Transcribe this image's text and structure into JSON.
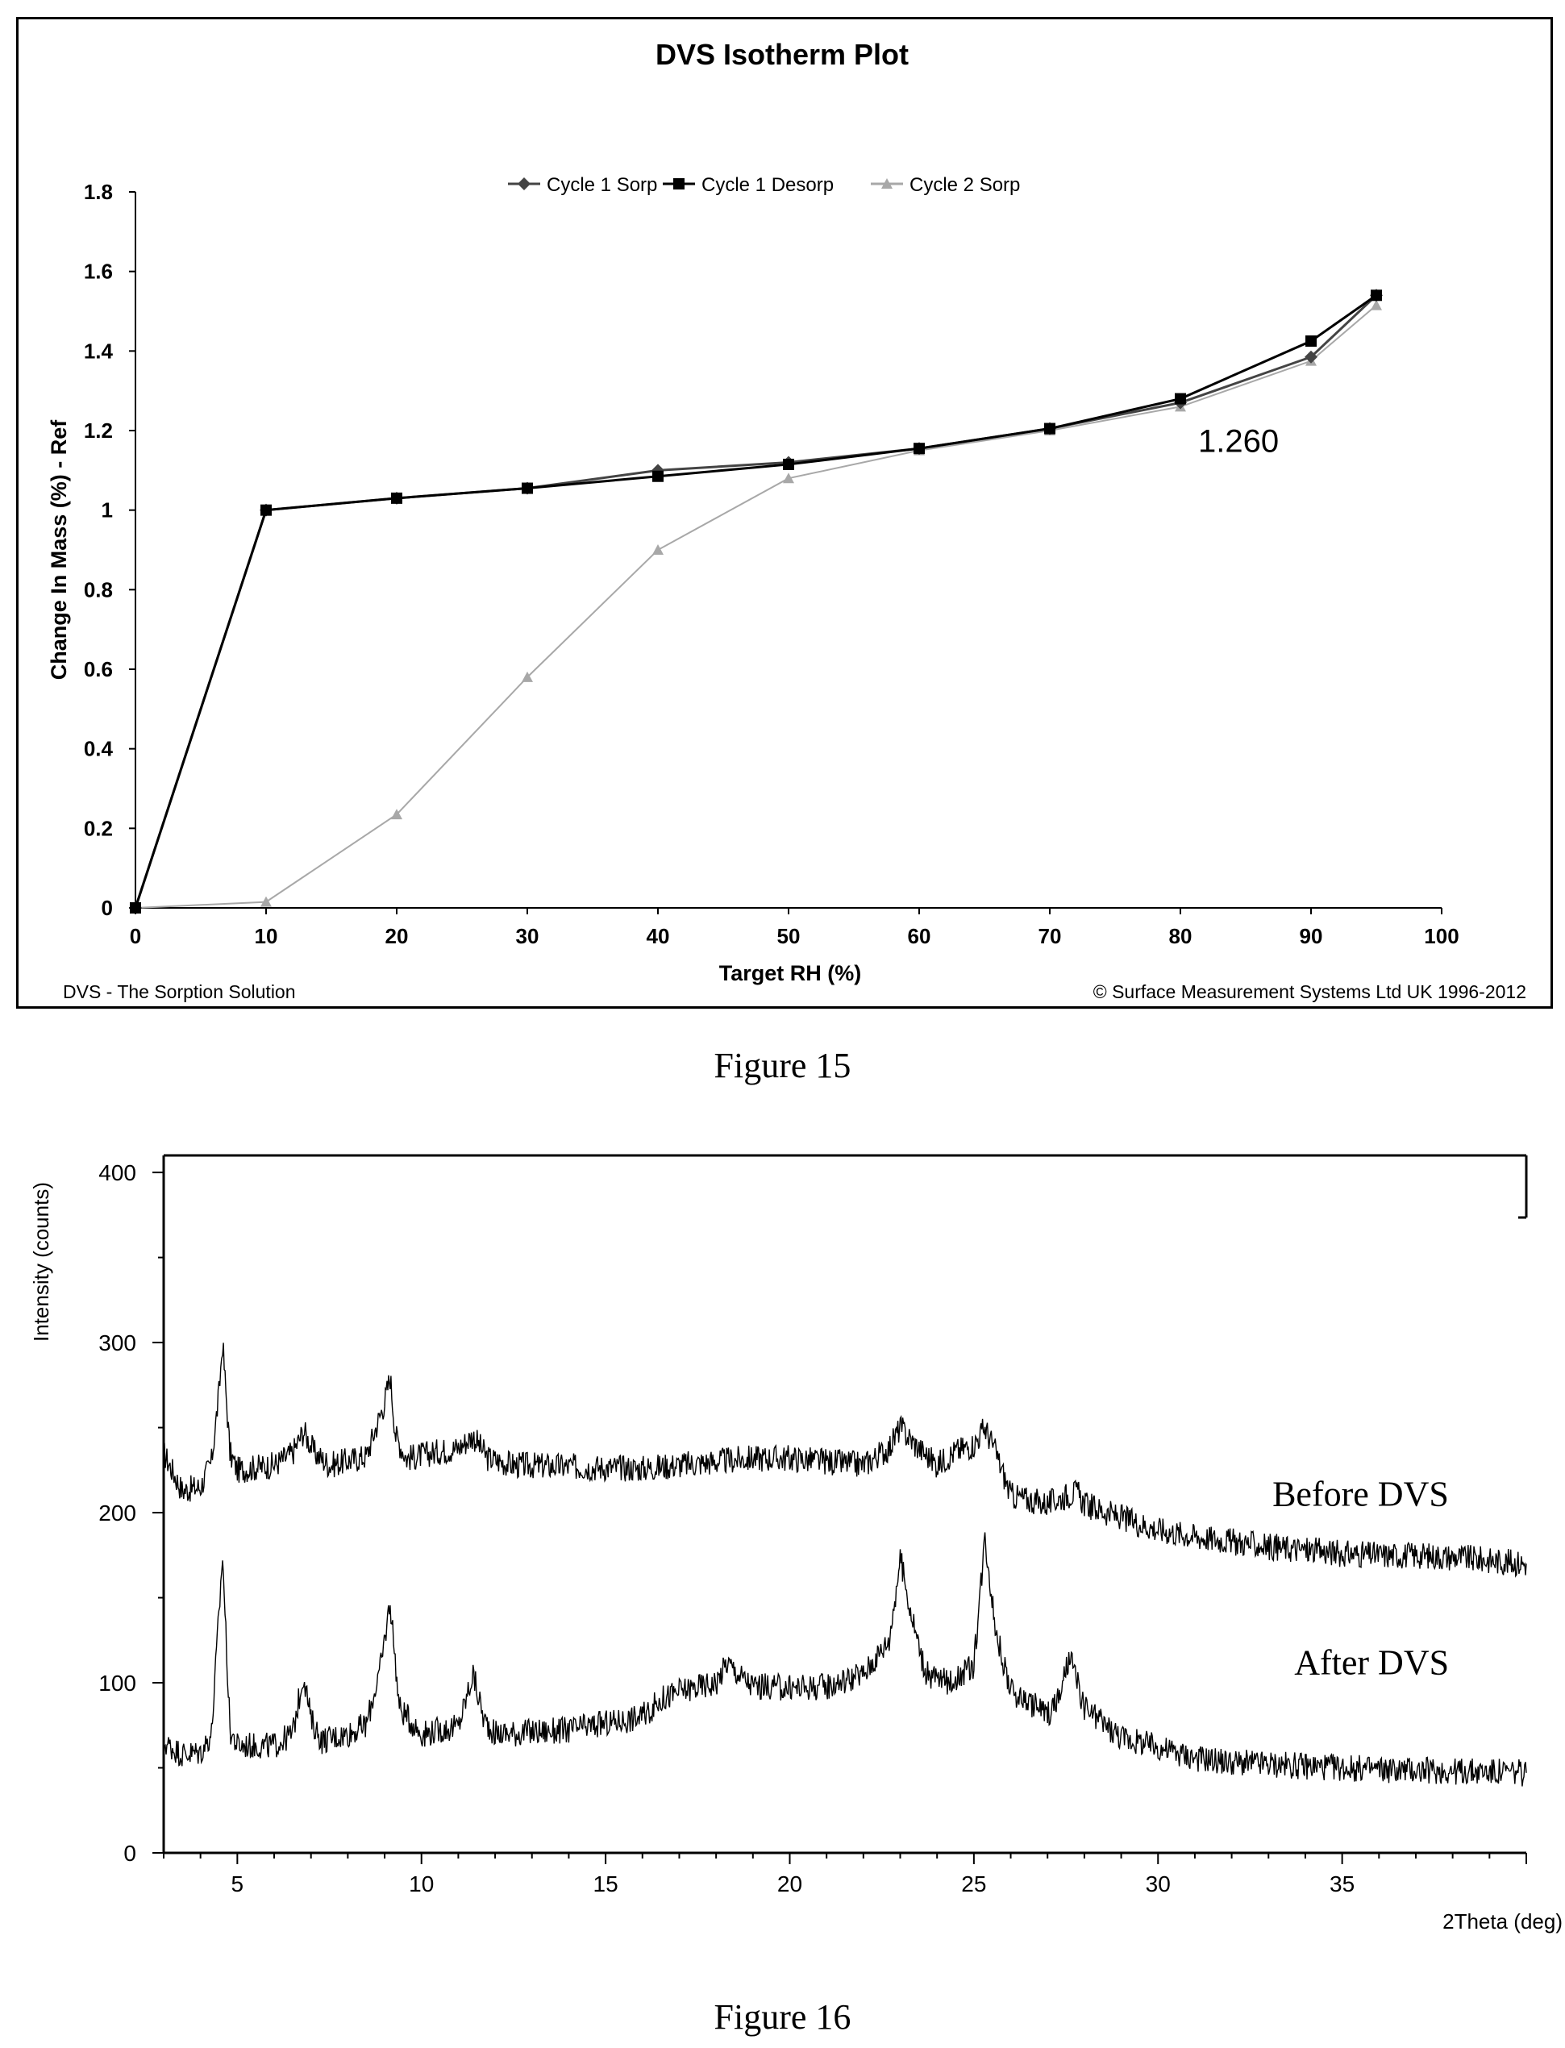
{
  "figure15": {
    "caption": "Figure 15",
    "chart_data": {
      "type": "line",
      "title": "DVS Isotherm Plot",
      "xlabel": "Target RH (%)",
      "ylabel": "Change In Mass (%) - Ref",
      "xlim": [
        0,
        100
      ],
      "ylim": [
        0,
        1.8
      ],
      "xticks": [
        0,
        10,
        20,
        30,
        40,
        50,
        60,
        70,
        80,
        90,
        100
      ],
      "yticks": [
        0,
        0.2,
        0.4,
        0.6,
        0.8,
        1,
        1.2,
        1.4,
        1.6,
        1.8
      ],
      "legend_position": "top-center",
      "grid": false,
      "series": [
        {
          "name": "Cycle 1 Sorp",
          "color": "#444444",
          "marker": "diamond",
          "x": [
            0,
            10,
            20,
            30,
            40,
            50,
            60,
            70,
            80,
            90,
            95
          ],
          "y": [
            0,
            1.0,
            1.03,
            1.055,
            1.1,
            1.12,
            1.155,
            1.205,
            1.27,
            1.385,
            1.54
          ]
        },
        {
          "name": "Cycle 1 Desorp",
          "color": "#000000",
          "marker": "square",
          "x": [
            95,
            90,
            80,
            70,
            60,
            50,
            40,
            30,
            20,
            10,
            0
          ],
          "y": [
            1.54,
            1.425,
            1.28,
            1.205,
            1.155,
            1.115,
            1.085,
            1.055,
            1.03,
            1.0,
            0
          ]
        },
        {
          "name": "Cycle 2 Sorp",
          "color": "#a8a8a8",
          "marker": "triangle",
          "x": [
            0,
            10,
            20,
            30,
            40,
            50,
            60,
            70,
            80,
            90,
            95
          ],
          "y": [
            0,
            0.015,
            0.235,
            0.58,
            0.9,
            1.08,
            1.15,
            1.2,
            1.26,
            1.375,
            1.515
          ]
        }
      ],
      "annotations": [
        {
          "text": "1.260",
          "x": 80,
          "y": 1.26
        }
      ],
      "footer_left": "DVS - The Sorption Solution",
      "footer_right": "© Surface Measurement Systems Ltd UK 1996-2012"
    }
  },
  "figure16": {
    "caption": "Figure 16",
    "chart_data": {
      "type": "line",
      "xlabel": "2Theta (deg)",
      "ylabel": "Intensity (counts)",
      "xlim": [
        3,
        40
      ],
      "ylim": [
        0,
        410
      ],
      "xticks": [
        5,
        10,
        15,
        20,
        25,
        30,
        35
      ],
      "yticks": [
        0,
        100,
        200,
        300,
        400
      ],
      "grid": false,
      "series": [
        {
          "name": "Before DVS",
          "color": "#000000",
          "x": [
            3,
            3.5,
            4,
            4.3,
            4.5,
            4.6,
            4.8,
            5,
            6,
            6.5,
            6.8,
            7.1,
            7.5,
            8.5,
            9,
            9.15,
            9.3,
            9.6,
            10.5,
            11,
            11.4,
            11.8,
            12.5,
            14,
            16,
            18,
            19,
            20,
            21,
            22,
            22.7,
            23,
            23.4,
            24,
            24.5,
            25,
            25.3,
            25.6,
            26,
            27,
            27.5,
            27.8,
            28,
            29,
            30,
            31,
            32,
            33,
            34,
            35,
            36,
            37,
            38,
            39,
            40
          ],
          "y": [
            235,
            213,
            215,
            230,
            270,
            300,
            235,
            225,
            228,
            235,
            248,
            235,
            228,
            233,
            265,
            280,
            245,
            232,
            236,
            238,
            245,
            232,
            228,
            227,
            226,
            230,
            232,
            232,
            230,
            228,
            238,
            250,
            240,
            228,
            236,
            240,
            250,
            235,
            210,
            205,
            210,
            212,
            205,
            197,
            190,
            186,
            183,
            180,
            178,
            176,
            175,
            175,
            174,
            172,
            170
          ]
        },
        {
          "name": "After DVS",
          "color": "#000000",
          "x": [
            3,
            3.5,
            4,
            4.3,
            4.5,
            4.6,
            4.8,
            5,
            6,
            6.5,
            6.8,
            7,
            7.3,
            8,
            8.5,
            8.9,
            9.15,
            9.4,
            10,
            11,
            11.4,
            11.7,
            12,
            14,
            16,
            16.5,
            17,
            18,
            18.3,
            18.6,
            19,
            20,
            21,
            22,
            22.7,
            23,
            23.3,
            23.7,
            24.3,
            25,
            25.3,
            25.6,
            26,
            27,
            27.3,
            27.6,
            28,
            29,
            30,
            31,
            32,
            34,
            36,
            38,
            40
          ],
          "y": [
            65,
            58,
            59,
            70,
            140,
            175,
            72,
            63,
            63,
            70,
            105,
            78,
            66,
            70,
            75,
            110,
            148,
            85,
            70,
            74,
            105,
            78,
            70,
            72,
            80,
            90,
            95,
            100,
            112,
            105,
            98,
            97,
            98,
            105,
            125,
            173,
            140,
            105,
            100,
            110,
            186,
            130,
            95,
            82,
            90,
            115,
            85,
            68,
            62,
            56,
            53,
            51,
            49,
            48,
            47
          ]
        }
      ],
      "annotations": [
        {
          "text": "Before DVS",
          "x": 35.5,
          "y": 204
        },
        {
          "text": "After DVS",
          "x": 35.8,
          "y": 105
        }
      ]
    }
  }
}
